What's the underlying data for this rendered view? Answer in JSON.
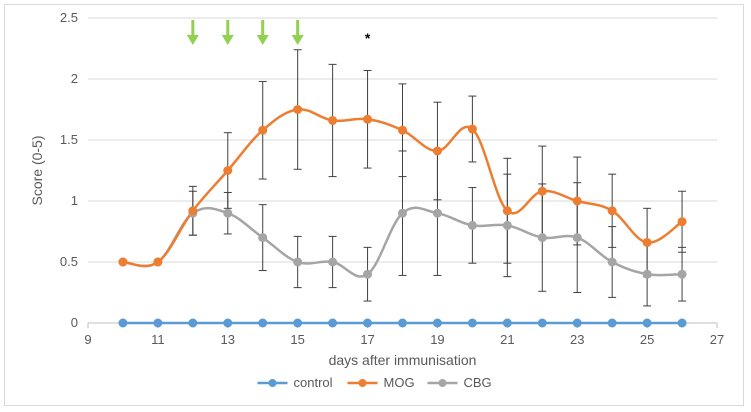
{
  "chart_data": {
    "type": "line",
    "title": "",
    "xlabel": "days after immunisation",
    "ylabel": "Score (0-5)",
    "xlim": [
      9,
      27
    ],
    "ylim": [
      0,
      2.5
    ],
    "x_ticks": [
      9,
      11,
      13,
      15,
      17,
      19,
      21,
      23,
      25,
      27
    ],
    "y_ticks": [
      0,
      0.5,
      1,
      1.5,
      2,
      2.5
    ],
    "y_tick_labels": [
      "0",
      "0.5",
      "1",
      "1.5",
      "2",
      "2.5"
    ],
    "x": [
      10,
      11,
      12,
      13,
      14,
      15,
      16,
      17,
      18,
      19,
      20,
      21,
      22,
      23,
      24,
      25,
      26
    ],
    "series": [
      {
        "name": "control",
        "color": "#5b9bd5",
        "values": [
          0,
          0,
          0,
          0,
          0,
          0,
          0,
          0,
          0,
          0,
          0,
          0,
          0,
          0,
          0,
          0,
          0
        ],
        "errors": null
      },
      {
        "name": "MOG",
        "color": "#ed7d31",
        "values": [
          0.5,
          0.5,
          0.92,
          1.25,
          1.58,
          1.75,
          1.66,
          1.67,
          1.58,
          1.41,
          1.59,
          0.92,
          1.08,
          1.0,
          0.92,
          0.66,
          0.83
        ],
        "errors": [
          0,
          0,
          0.2,
          0.31,
          0.4,
          0.49,
          0.46,
          0.4,
          0.38,
          0.4,
          0.27,
          0.43,
          0.37,
          0.36,
          0.3,
          0.28,
          0.25
        ]
      },
      {
        "name": "CBG",
        "color": "#a5a5a5",
        "values": [
          0.5,
          0.5,
          0.9,
          0.9,
          0.7,
          0.5,
          0.5,
          0.4,
          0.9,
          0.9,
          0.8,
          0.8,
          0.7,
          0.7,
          0.5,
          0.4,
          0.4
        ],
        "errors": [
          0,
          0,
          0.18,
          0.17,
          0.27,
          0.21,
          0.21,
          0.22,
          0.51,
          0.51,
          0.31,
          0.42,
          0.44,
          0.45,
          0.29,
          0.26,
          0.22
        ]
      }
    ],
    "arrows_at_x": [
      12,
      13,
      14,
      15
    ],
    "arrow_color": "#92d050",
    "annotation": {
      "text": "*",
      "x": 17
    },
    "legend": {
      "placement": "bottom"
    }
  }
}
